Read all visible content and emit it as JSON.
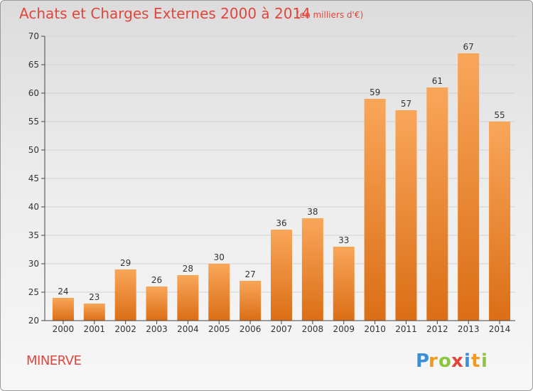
{
  "header": {
    "title": "Achats et Charges Externes 2000 à 2014",
    "unit": "(en milliers d'€)"
  },
  "footer": {
    "commune": "MINERVE",
    "brand": "Proxiti"
  },
  "colors": {
    "title": "#e0463c",
    "bar_light": "#f9a659",
    "bar_dark": "#db6e16",
    "axis": "#444444",
    "grid": "#d2d2d2"
  },
  "chart_data": {
    "type": "bar",
    "categories": [
      "2000",
      "2001",
      "2002",
      "2003",
      "2004",
      "2005",
      "2006",
      "2007",
      "2008",
      "2009",
      "2010",
      "2011",
      "2012",
      "2013",
      "2014"
    ],
    "values": [
      24,
      23,
      29,
      26,
      28,
      30,
      27,
      36,
      38,
      33,
      59,
      57,
      61,
      67,
      55
    ],
    "title": "Achats et Charges Externes 2000 à 2014",
    "subtitle": "(en milliers d'€)",
    "ylim": [
      20,
      70
    ],
    "yticks": [
      20,
      25,
      30,
      35,
      40,
      45,
      50,
      55,
      60,
      65,
      70
    ],
    "grid": true,
    "legend": "none"
  }
}
